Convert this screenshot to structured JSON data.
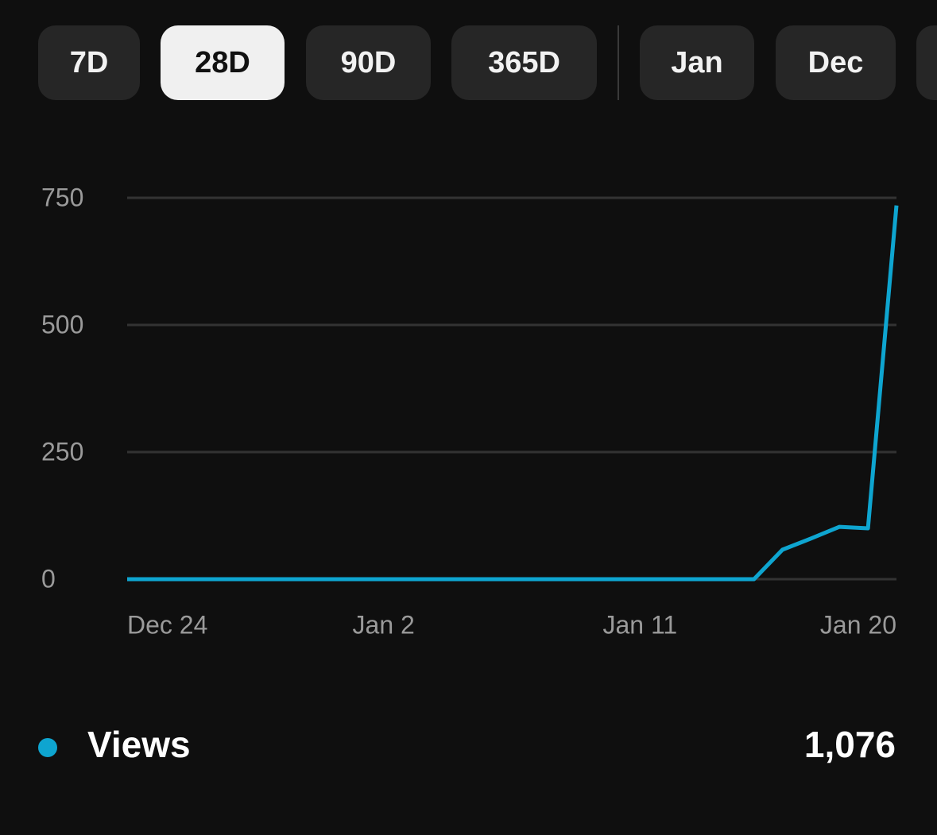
{
  "tabs": [
    {
      "label": "7D",
      "selected": false
    },
    {
      "label": "28D",
      "selected": true
    },
    {
      "label": "90D",
      "selected": false
    },
    {
      "label": "365D",
      "selected": false
    },
    {
      "label": "Jan",
      "selected": false
    },
    {
      "label": "Dec",
      "selected": false
    }
  ],
  "chart_data": {
    "type": "line",
    "categories": [
      "Dec 24",
      null,
      null,
      null,
      null,
      null,
      null,
      null,
      null,
      "Jan 2",
      null,
      null,
      null,
      null,
      null,
      null,
      null,
      null,
      "Jan 11",
      null,
      null,
      null,
      null,
      null,
      null,
      null,
      null,
      "Jan 20"
    ],
    "series": [
      {
        "name": "Views",
        "color": "#0ea5d0",
        "values": [
          0,
          0,
          0,
          0,
          0,
          0,
          0,
          0,
          0,
          0,
          0,
          0,
          0,
          0,
          0,
          0,
          0,
          0,
          0,
          0,
          0,
          0,
          0,
          58,
          80,
          103,
          100,
          735
        ]
      }
    ],
    "ylim": [
      0,
      750
    ],
    "yticks": [
      0,
      250,
      500,
      750
    ],
    "grid": true
  },
  "total": "1,076"
}
